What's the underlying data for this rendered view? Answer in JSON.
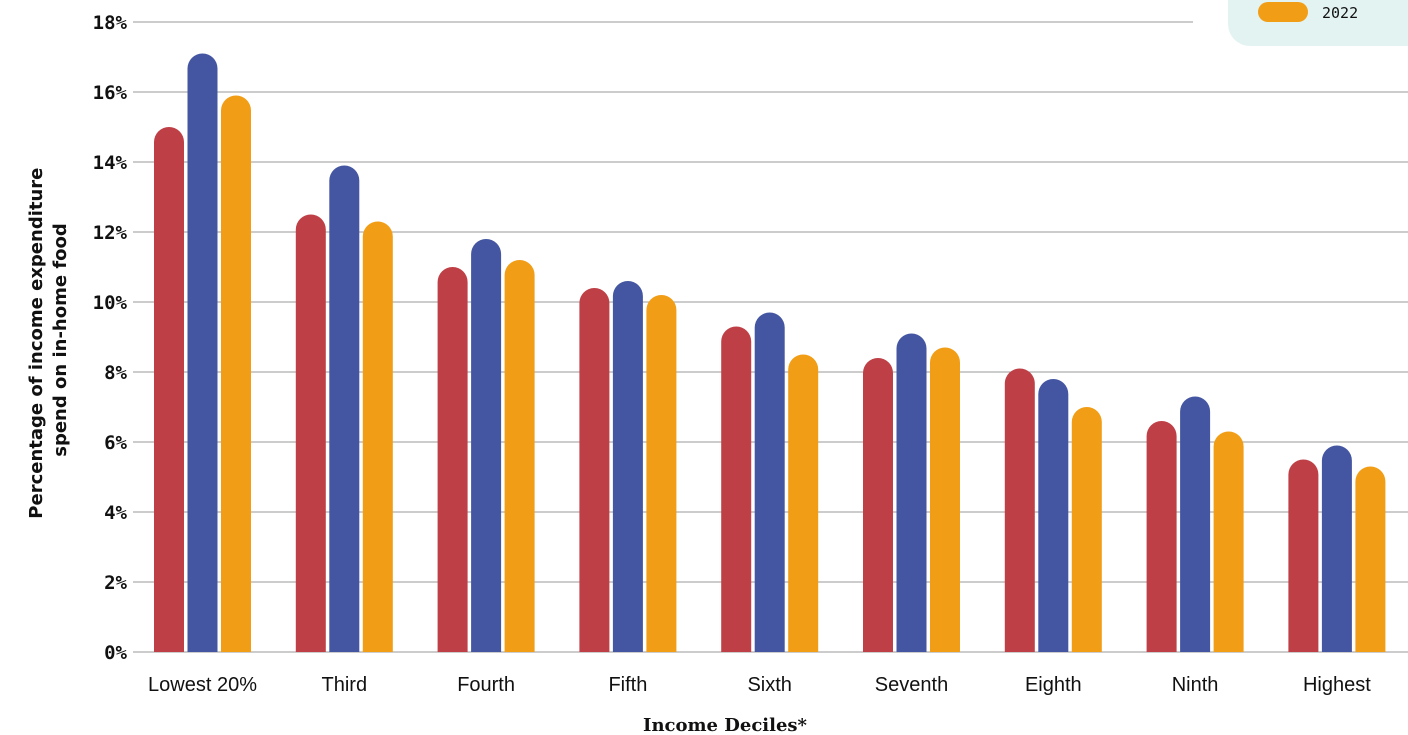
{
  "chart_data": {
    "type": "bar",
    "xlabel": "Income Deciles*",
    "ylabel_lines": [
      "Percentage of income expenditure",
      "spend on in-home food"
    ],
    "ylim": [
      0,
      18
    ],
    "y_tick_step": 2,
    "y_tick_labels": [
      "0%",
      "2%",
      "4%",
      "6%",
      "8%",
      "10%",
      "12%",
      "14%",
      "16%",
      "18%"
    ],
    "grid": true,
    "legend_position": "top-right",
    "categories": [
      "Lowest 20%",
      "Third",
      "Fourth",
      "Fifth",
      "Sixth",
      "Seventh",
      "Eighth",
      "Ninth",
      "Highest"
    ],
    "series": [
      {
        "name": "",
        "color": "#be4046",
        "values": [
          15.0,
          12.5,
          11.0,
          10.4,
          9.3,
          8.4,
          8.1,
          6.6,
          5.5
        ]
      },
      {
        "name": "",
        "color": "#4456a2",
        "values": [
          17.1,
          13.9,
          11.8,
          10.6,
          9.7,
          9.1,
          7.8,
          7.3,
          5.9
        ]
      },
      {
        "name": "2022",
        "color": "#f19d16",
        "values": [
          15.9,
          12.3,
          11.2,
          10.2,
          8.5,
          8.7,
          7.0,
          6.3,
          5.3
        ]
      }
    ]
  }
}
